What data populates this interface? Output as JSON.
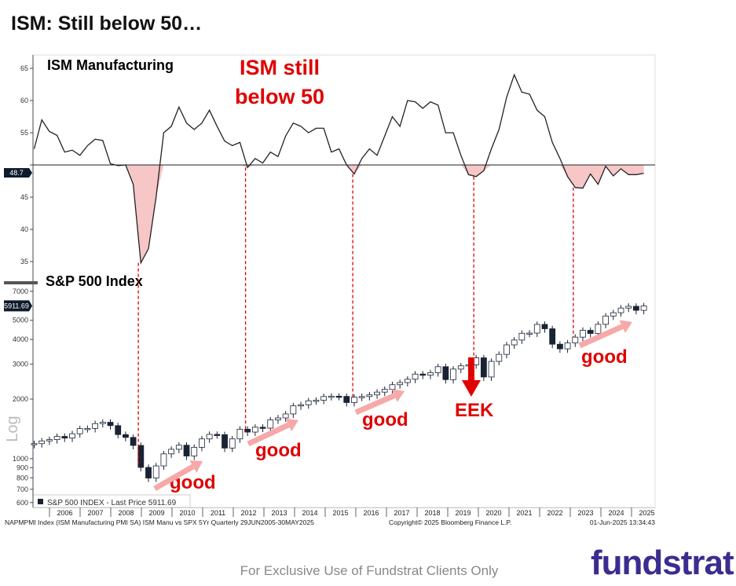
{
  "page": {
    "title": "ISM: Still below 50…",
    "footer": "For Exclusive Use of Fundstrat Clients Only",
    "logo": "fundstrat"
  },
  "chart_data": [
    {
      "type": "line",
      "title": "ISM Manufacturing",
      "ylim": [
        33,
        66
      ],
      "yticks": [
        35,
        40,
        45,
        50,
        55,
        60,
        65
      ],
      "reference_line": 50,
      "last_value_label": "48.7",
      "x_start": 2005.5,
      "x_end": 2025.4,
      "fill_below_reference_color": "#f7c6c6",
      "line_color": "#222222",
      "values": [
        52.5,
        57,
        55.2,
        54.6,
        52,
        52.3,
        51.5,
        53,
        54,
        53.8,
        50.2,
        49.9,
        50,
        47,
        34.8,
        37,
        45,
        55,
        56,
        59,
        56.5,
        55.5,
        56.5,
        58.5,
        56,
        53.7,
        53,
        53.5,
        49.6,
        51,
        50.3,
        52,
        51.3,
        54.5,
        56.5,
        56,
        55,
        55.7,
        55.7,
        52,
        52.5,
        50,
        48.6,
        51,
        52.5,
        51.5,
        54.5,
        57.5,
        56,
        60,
        59.8,
        58.8,
        59.8,
        59.3,
        55,
        55,
        51.5,
        48.5,
        48.2,
        49.1,
        52.5,
        55.5,
        60.5,
        64,
        61.3,
        61,
        58.5,
        57.5,
        53.5,
        51,
        48.2,
        46.5,
        46.4,
        48.6,
        47,
        49.8,
        48.3,
        49.4,
        48.5,
        48.5,
        48.7
      ],
      "annotation": [
        "ISM still",
        "below 50"
      ]
    },
    {
      "type": "candlestick",
      "title": "S&P 500 Index",
      "scale": "log",
      "ylabel": "Log",
      "yticks": [
        600,
        700,
        800,
        900,
        1000,
        2000,
        3000,
        4000,
        5000,
        7000
      ],
      "last_value_label": "5911.69",
      "legend": "S&P 500 INDEX - Last Price 5911.69",
      "close": [
        1191,
        1229,
        1248,
        1295,
        1270,
        1336,
        1418,
        1421,
        1503,
        1527,
        1468,
        1323,
        1280,
        1166,
        903,
        798,
        919,
        1057,
        1115,
        1169,
        1031,
        1141,
        1258,
        1326,
        1321,
        1131,
        1258,
        1408,
        1362,
        1441,
        1426,
        1569,
        1606,
        1682,
        1848,
        1872,
        1960,
        1972,
        2059,
        2068,
        2063,
        1920,
        2044,
        2060,
        2099,
        2168,
        2239,
        2363,
        2423,
        2519,
        2674,
        2641,
        2718,
        2914,
        2507,
        2834,
        2942,
        2977,
        3231,
        2585,
        3100,
        3363,
        3756,
        3973,
        4298,
        4308,
        4766,
        4530,
        3785,
        3586,
        3840,
        4109,
        4450,
        4288,
        4770,
        5254,
        5460,
        5762,
        5882,
        5612,
        5912
      ],
      "annotations": [
        "good",
        "good",
        "good",
        "EEK",
        "good"
      ]
    },
    {
      "x_tick_labels": [
        "2006",
        "2007",
        "2008",
        "2009",
        "2010",
        "2011",
        "2012",
        "2013",
        "2014",
        "2015",
        "2016",
        "2017",
        "2018",
        "2019",
        "2020",
        "2021",
        "2022",
        "2023",
        "2024",
        "2025"
      ],
      "marker_dates": [
        2008.9,
        2012.4,
        2015.9,
        2019.85,
        2023.1
      ]
    }
  ],
  "source": {
    "left": "NAPMPMI Index (ISM Manufacturing PMI SA) ISM Manu vs SPX 5Yr  Quarterly 29JUN2005-30MAY2025",
    "center": "Copyright© 2025 Bloomberg Finance L.P.",
    "right": "01-Jun-2025 13:34:43"
  }
}
